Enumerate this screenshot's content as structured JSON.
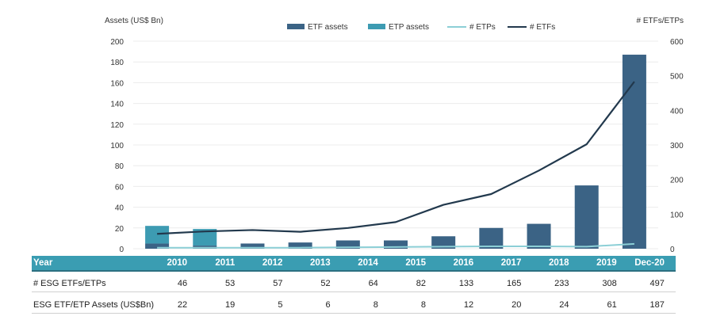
{
  "chart_data": {
    "type": "bar",
    "left_axis_label": "Assets (US$ Bn)",
    "right_axis_label": "# ETFs/ETPs",
    "left_ylim": [
      0,
      200
    ],
    "left_ticks": [
      0,
      20,
      40,
      60,
      80,
      100,
      120,
      140,
      160,
      180,
      200
    ],
    "right_ylim": [
      0,
      600
    ],
    "right_ticks": [
      0,
      100,
      200,
      300,
      400,
      500,
      600
    ],
    "grid": true,
    "legend_placement": "top-center",
    "categories": [
      "2010",
      "2011",
      "2012",
      "2013",
      "2014",
      "2015",
      "2016",
      "2017",
      "2018",
      "2019",
      "Dec-20"
    ],
    "series": [
      {
        "name": "ETF assets",
        "kind": "bar",
        "axis": "left",
        "color": "#3b6385",
        "values": [
          5,
          3,
          5,
          6,
          8,
          8,
          12,
          20,
          24,
          61,
          187
        ]
      },
      {
        "name": "ETP assets",
        "kind": "bar",
        "axis": "left",
        "color": "#3d9bb2",
        "values": [
          17,
          16,
          0,
          0,
          0,
          0,
          0,
          0,
          0,
          0,
          0
        ]
      },
      {
        "name": "# ETPs",
        "kind": "line",
        "axis": "right",
        "color": "#8ccfd6",
        "values": [
          3,
          3,
          3,
          3,
          4,
          5,
          6,
          7,
          7,
          6,
          14
        ]
      },
      {
        "name": "# ETFs",
        "kind": "line",
        "axis": "right",
        "color": "#22394d",
        "values": [
          43,
          50,
          54,
          49,
          60,
          77,
          127,
          158,
          226,
          302,
          483
        ]
      }
    ]
  },
  "table": {
    "header_label": "Year",
    "years": [
      "2010",
      "2011",
      "2012",
      "2013",
      "2014",
      "2015",
      "2016",
      "2017",
      "2018",
      "2019",
      "Dec-20"
    ],
    "rows": [
      {
        "label": "# ESG ETFs/ETPs",
        "values": [
          "46",
          "53",
          "57",
          "52",
          "64",
          "82",
          "133",
          "165",
          "233",
          "308",
          "497"
        ]
      },
      {
        "label": "ESG ETF/ETP Assets (US$Bn)",
        "values": [
          "22",
          "19",
          "5",
          "6",
          "8",
          "8",
          "12",
          "20",
          "24",
          "61",
          "187"
        ]
      }
    ]
  }
}
